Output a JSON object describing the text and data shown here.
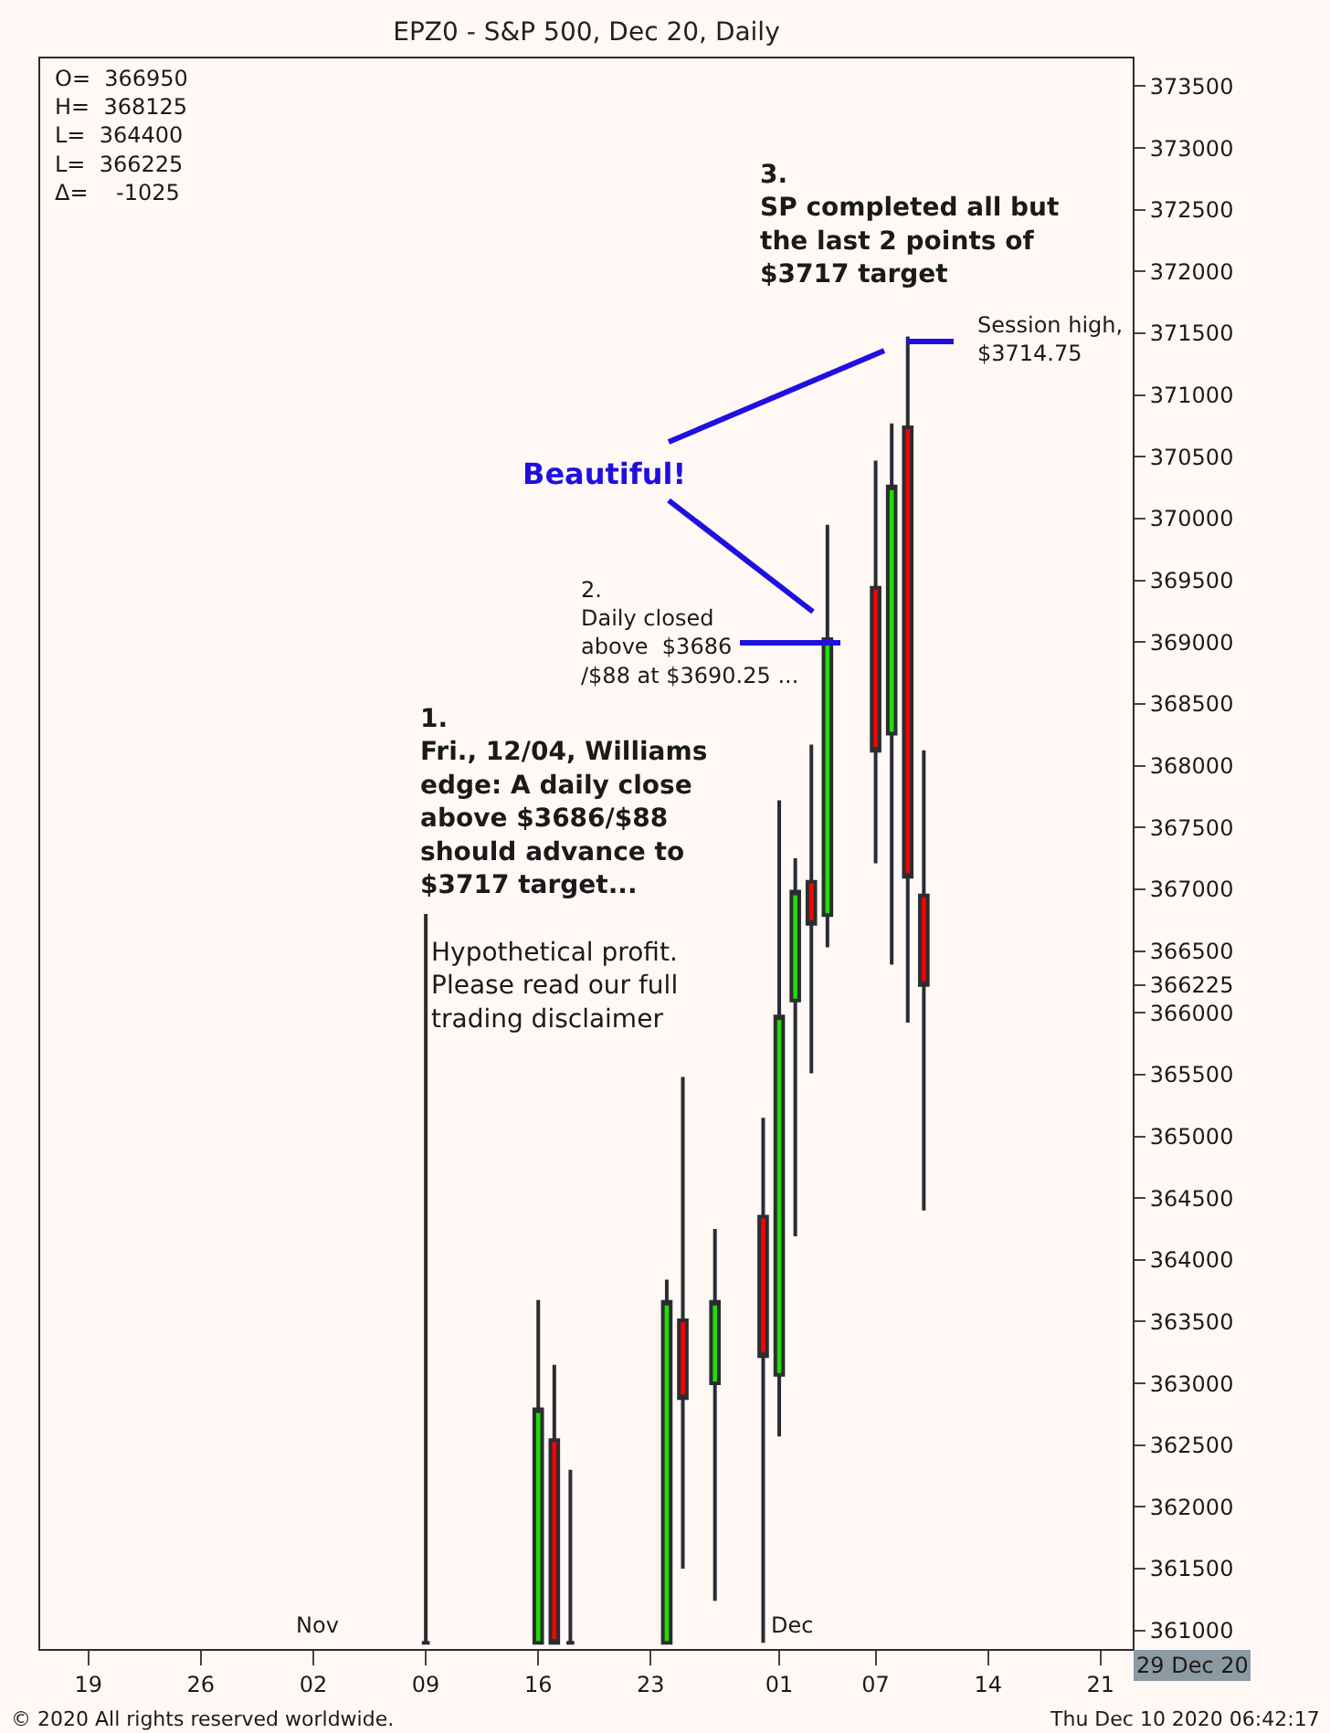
{
  "chart_data": {
    "type": "candlestick",
    "title": "EPZ0 - S&P 500, Dec 20, Daily",
    "x": [
      "2020-11-09",
      "2020-11-16",
      "2020-11-17",
      "2020-11-18",
      "2020-11-24",
      "2020-11-25",
      "2020-11-27",
      "2020-11-30",
      "2020-12-01",
      "2020-12-02",
      "2020-12-03",
      "2020-12-04",
      "2020-12-07",
      "2020-12-08",
      "2020-12-09",
      "2020-12-10"
    ],
    "ohlc": [
      [
        360900,
        366800,
        360900,
        360900
      ],
      [
        360900,
        363675,
        360900,
        362790
      ],
      [
        362540,
        363150,
        360900,
        360900
      ],
      [
        360900,
        362300,
        360900,
        360900
      ],
      [
        360900,
        363840,
        360900,
        363660
      ],
      [
        363510,
        365480,
        361500,
        362880
      ],
      [
        363000,
        364250,
        361240,
        363660
      ],
      [
        364350,
        365150,
        360900,
        363220
      ],
      [
        363070,
        367720,
        362570,
        365970
      ],
      [
        366100,
        367250,
        364190,
        366980
      ],
      [
        367060,
        368170,
        365510,
        366720
      ],
      [
        366790,
        369950,
        366530,
        369025
      ],
      [
        369440,
        370470,
        367210,
        368120
      ],
      [
        368260,
        370770,
        366390,
        370260
      ],
      [
        370740,
        371475,
        365920,
        367100
      ],
      [
        366950,
        368125,
        364400,
        366225
      ]
    ],
    "colors": [
      "#2a2d33",
      "#22dd00",
      "#ff0000",
      "#2a2d33",
      "#22dd00",
      "#ff0000",
      "#22dd00",
      "#ff0000",
      "#22dd00",
      "#22dd00",
      "#ff0000",
      "#22dd00",
      "#ff0000",
      "#22dd00",
      "#ff0000",
      "#ff0000"
    ],
    "xlim": [
      "2020-10-16",
      "2020-12-23"
    ],
    "xticks": [
      {
        "value": "2020-10-19",
        "label": "19"
      },
      {
        "value": "2020-10-26",
        "label": "26"
      },
      {
        "value": "2020-11-02",
        "label": "02"
      },
      {
        "value": "2020-11-09",
        "label": "09"
      },
      {
        "value": "2020-11-16",
        "label": "16"
      },
      {
        "value": "2020-11-23",
        "label": "23"
      },
      {
        "value": "2020-12-01",
        "label": "01"
      },
      {
        "value": "2020-12-07",
        "label": "07"
      },
      {
        "value": "2020-12-14",
        "label": "14"
      },
      {
        "value": "2020-12-21",
        "label": "21"
      }
    ],
    "ylim": [
      360850,
      373725
    ],
    "yticks": [
      361000,
      361500,
      362000,
      362500,
      363000,
      363500,
      364000,
      364500,
      365000,
      365500,
      366000,
      366225,
      366500,
      367000,
      367500,
      368000,
      368500,
      369000,
      369500,
      370000,
      370500,
      371000,
      371500,
      372000,
      372500,
      373000,
      373500
    ],
    "annotations": [
      "O=  366950\nH=  368125\nL=  364400\nL=  366225\nΔ=    -1025",
      "3.\nSP completed all but\nthe last 2 points of\n$3717 target",
      {
        "text": "Session high,\n$3714.75",
        "x": "2020-12-09",
        "y": 371475
      },
      "Beautiful!",
      "2.\nDaily closed\nabove  $3686\n/$88 at $3690.25 ...",
      "1.\nFri., 12/04, Williams\nedge: A daily close\nabove $3686/$88\nshould advance to\n$3717 target...",
      "Hypothetical profit.\nPlease read our full\ntrading disclaimer",
      "Nov",
      "Dec",
      "29 Dec 20",
      "© 2020 All rights reserved worldwide.",
      "Thu Dec 10 2020 06:42:17"
    ],
    "grid": false,
    "legend": false
  }
}
